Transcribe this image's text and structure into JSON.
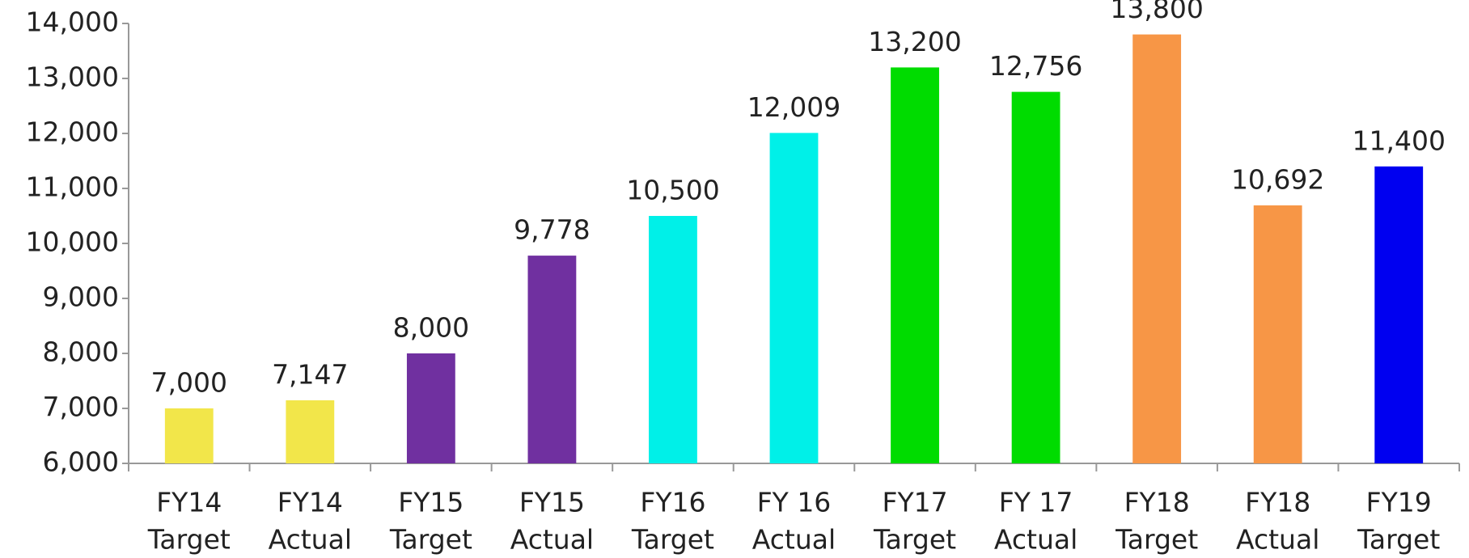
{
  "chart_data": {
    "type": "bar",
    "categories": [
      [
        "FY14",
        "Target"
      ],
      [
        "FY14",
        "Actual"
      ],
      [
        "FY15",
        "Target"
      ],
      [
        "FY15",
        "Actual"
      ],
      [
        "FY16",
        "Target"
      ],
      [
        "FY 16",
        "Actual"
      ],
      [
        "FY17",
        "Target"
      ],
      [
        "FY 17",
        "Actual"
      ],
      [
        "FY18",
        "Target"
      ],
      [
        "FY18",
        "Actual"
      ],
      [
        "FY19",
        "Target"
      ]
    ],
    "values": [
      7000,
      7147,
      8000,
      9778,
      10500,
      12009,
      13200,
      12756,
      13800,
      10692,
      11400
    ],
    "value_labels": [
      "7,000",
      "7,147",
      "8,000",
      "9,778",
      "10,500",
      "12,009",
      "13,200",
      "12,756",
      "13,800",
      "10,692",
      "11,400"
    ],
    "colors": [
      "#f2e64a",
      "#f2e64a",
      "#7030a0",
      "#7030a0",
      "#00f0e8",
      "#00f0e8",
      "#00dc00",
      "#00dc00",
      "#f79646",
      "#f79646",
      "#0000f0"
    ],
    "ylim": [
      6000,
      14000
    ],
    "yticks": [
      {
        "value": 6000,
        "label": "6,000"
      },
      {
        "value": 7000,
        "label": "7,000"
      },
      {
        "value": 8000,
        "label": "8,000"
      },
      {
        "value": 9000,
        "label": "9,000"
      },
      {
        "value": 10000,
        "label": "10,000"
      },
      {
        "value": 11000,
        "label": "11,000"
      },
      {
        "value": 12000,
        "label": "12,000"
      },
      {
        "value": 13000,
        "label": "13,000"
      },
      {
        "value": 14000,
        "label": "14,000"
      }
    ],
    "grid": false
  }
}
